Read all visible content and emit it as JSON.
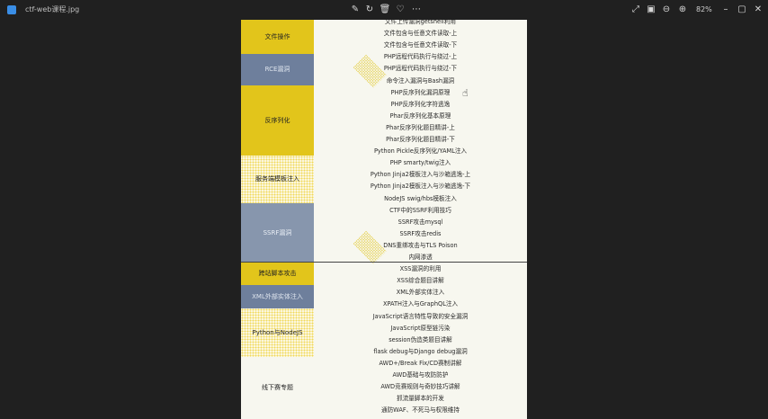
{
  "window": {
    "title": "ctf-web课程.jpg",
    "zoom": "82%"
  },
  "toolbar": {
    "icons": [
      "edit-icon",
      "rotate-icon",
      "delete-icon",
      "favorite-icon",
      "more-icon"
    ],
    "right_icons": [
      "crop-icon",
      "fit-icon",
      "zoom-out-icon",
      "zoom-in-icon"
    ],
    "window_icons": [
      "minimize-icon",
      "maximize-icon",
      "close-icon"
    ]
  },
  "categories": [
    {
      "label": "文件操作",
      "style": "yellow"
    },
    {
      "label": "RCE漏洞",
      "style": "navy"
    },
    {
      "label": "反序列化",
      "style": "yellow"
    },
    {
      "label": "服务端模板注入",
      "style": "dotted"
    },
    {
      "label": "SSRF漏洞",
      "style": "gray"
    },
    {
      "label": "跨站脚本攻击",
      "style": "yellow"
    },
    {
      "label": "XML外部实体注入",
      "style": "navy"
    },
    {
      "label": "Python与NodeJS",
      "style": "dotted"
    },
    {
      "label": "线下赛专题",
      "style": "plain"
    }
  ],
  "items": [
    "文件上传漏洞getshell利用",
    "文件包含与任意文件读取-上",
    "文件包含与任意文件读取-下",
    "PHP远程代码执行与绕过-上",
    "PHP远程代码执行与绕过-下",
    "命令注入漏洞与Bash漏洞",
    "PHP反序列化漏洞原理",
    "PHP反序列化字符逃逸",
    "Phar反序列化基本原理",
    "Phar反序列化题目精讲-上",
    "Phar反序列化题目精讲-下",
    "Python Pickle反序列化/YAML注入",
    "PHP smarty/twig注入",
    "Python Jinja2模板注入与沙箱逃逸-上",
    "Python Jinja2模板注入与沙箱逃逸-下",
    "NodeJS swig/hbs模板注入",
    "CTF中的SSRF利用技巧",
    "SSRF攻击mysql",
    "SSRF攻击redis",
    "DNS重绑攻击与TLS Poison",
    "内网渗透",
    "XSS漏洞的利用",
    "XSS综合题目讲解",
    "XML外部实体注入",
    "XPATH注入与GraphQL注入",
    "JavaScript语言特性导致的安全漏洞",
    "JavaScript原型链污染",
    "session伪造类题目讲解",
    "flask debug与Django debug漏洞",
    "AWD+/Break Fix/CD赛制讲解",
    "AWD基础与攻防防护",
    "AWD竞赛规则与奇妙技巧讲解",
    "抓流量脚本的开发",
    "通防WAF、不死马与权限维持"
  ]
}
